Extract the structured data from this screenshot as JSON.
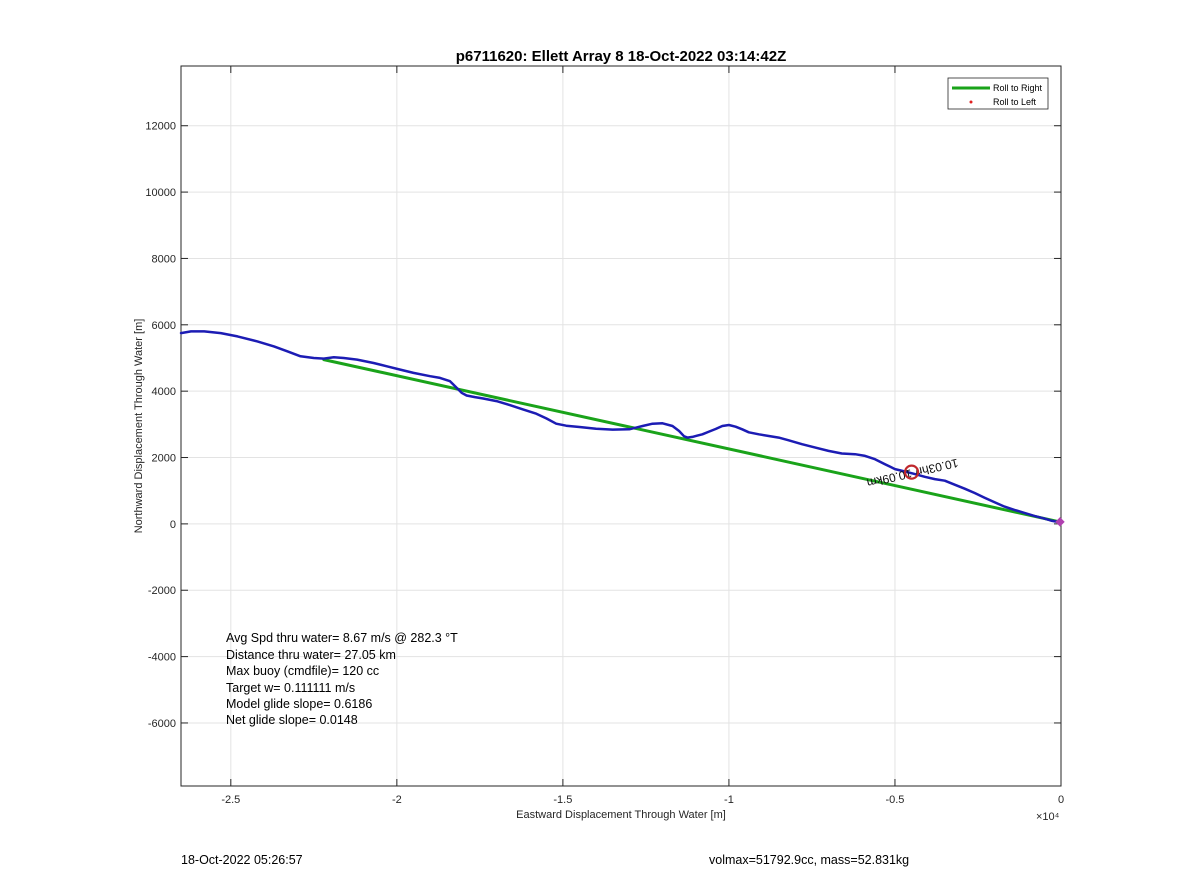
{
  "chart_data": {
    "type": "line",
    "title": "p6711620: Ellett Array 8 18-Oct-2022 03:14:42Z",
    "xlabel": "Eastward Displacement Through Water [m]",
    "ylabel": "Northward Displacement Through Water [m]",
    "x_exponent_label": "×10⁴",
    "xlim": [
      -26500,
      0
    ],
    "ylim": [
      -7900,
      13800
    ],
    "x_ticks": [
      -25000,
      -20000,
      -15000,
      -10000,
      -5000,
      0
    ],
    "x_tick_labels": [
      "-2.5",
      "-2",
      "-1.5",
      "-1",
      "-0.5",
      "0"
    ],
    "y_ticks": [
      -6000,
      -4000,
      -2000,
      0,
      2000,
      4000,
      6000,
      8000,
      10000,
      12000
    ],
    "y_tick_labels": [
      "-6000",
      "-4000",
      "-2000",
      "0",
      "2000",
      "4000",
      "6000",
      "8000",
      "10000",
      "12000"
    ],
    "grid": true,
    "legend_position": "top-right",
    "legend": [
      {
        "label": "Roll to Right",
        "color": "#1aa31a",
        "style": "line"
      },
      {
        "label": "Roll to Left",
        "color": "#e02020",
        "style": "dot"
      }
    ],
    "series": [
      {
        "name": "Roll to Right",
        "color": "#1aa31a",
        "x": [
          -22200,
          0
        ],
        "y": [
          4950,
          50
        ]
      },
      {
        "color": "#1c1cb4",
        "x": [
          -26500,
          -26200,
          -25800,
          -25300,
          -24800,
          -24200,
          -23700,
          -23300,
          -22900,
          -22500,
          -22200,
          -21900,
          -21600,
          -21200,
          -20700,
          -20300,
          -19900,
          -19500,
          -19000,
          -18700,
          -18400,
          -18200,
          -18050,
          -17900,
          -17650,
          -17400,
          -17000,
          -16600,
          -16200,
          -15800,
          -15500,
          -15200,
          -14900,
          -14500,
          -14000,
          -13500,
          -13000,
          -12600,
          -12300,
          -12000,
          -11700,
          -11500,
          -11350,
          -11250,
          -11100,
          -10950,
          -10800,
          -10600,
          -10400,
          -10200,
          -10000,
          -9800,
          -9600,
          -9400,
          -9100,
          -8800,
          -8500,
          -8200,
          -7800,
          -7400,
          -7000,
          -6600,
          -6200,
          -5900,
          -5600,
          -5300,
          -5000,
          -4700,
          -4400,
          -4100,
          -3800,
          -3500,
          -3200,
          -2900,
          -2600,
          -2300,
          -2000,
          -1700,
          -1400,
          -1100,
          -800,
          -500,
          -300,
          -100,
          0
        ],
        "y": [
          5750,
          5800,
          5800,
          5750,
          5650,
          5500,
          5350,
          5200,
          5050,
          5000,
          4980,
          5020,
          5000,
          4950,
          4850,
          4750,
          4650,
          4550,
          4450,
          4400,
          4300,
          4100,
          3950,
          3870,
          3820,
          3780,
          3700,
          3580,
          3450,
          3320,
          3180,
          3020,
          2960,
          2920,
          2870,
          2840,
          2850,
          2950,
          3020,
          3030,
          2950,
          2800,
          2640,
          2600,
          2620,
          2660,
          2700,
          2780,
          2860,
          2950,
          2980,
          2930,
          2850,
          2760,
          2700,
          2650,
          2600,
          2520,
          2400,
          2300,
          2200,
          2120,
          2100,
          2050,
          1950,
          1800,
          1650,
          1580,
          1500,
          1420,
          1350,
          1300,
          1180,
          1060,
          930,
          790,
          650,
          520,
          420,
          330,
          240,
          160,
          100,
          60,
          40
        ]
      }
    ],
    "annotations": [
      {
        "text": "10.03hr/ 10.09km",
        "x": -4500,
        "y": 1650,
        "rotation_deg": 167
      }
    ],
    "markers": [
      {
        "shape": "circle",
        "color": "#c0282d",
        "x": -4500,
        "y": 1560
      },
      {
        "shape": "diamond",
        "color": "#b040b0",
        "x": -30,
        "y": 60
      }
    ]
  },
  "stats_lines": [
    "Avg Spd thru water=  8.67 m/s @ 282.3 °T",
    "Distance thru water= 27.05 km",
    "Max buoy (cmdfile)= 120 cc",
    "Target w= 0.111111 m/s",
    "Model glide slope= 0.6186",
    "Net glide slope= 0.0148"
  ],
  "footer": {
    "left": "18-Oct-2022 05:26:57",
    "right": "volmax=51792.9cc, mass=52.831kg"
  }
}
